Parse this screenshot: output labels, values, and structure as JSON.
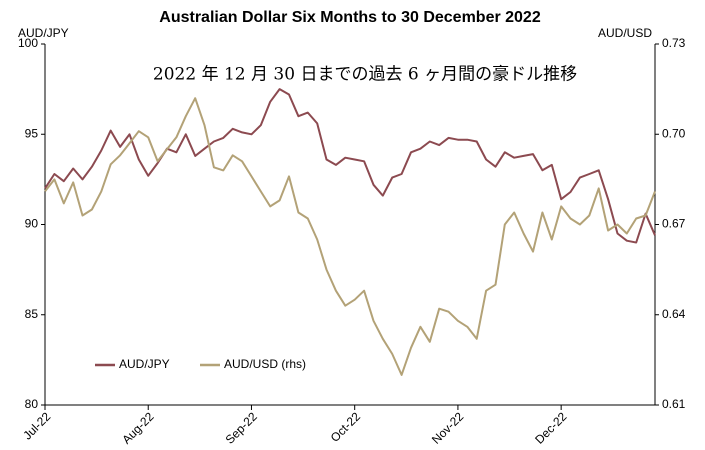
{
  "chart_data": {
    "type": "line",
    "title": "Australian Dollar Six Months to 30 December 2022",
    "subtitle": "2022 年 12 月 30 日までの過去 6 ヶ月間の豪ドル推移",
    "ylabel": "AUD/JPY",
    "y2label": "AUD/USD",
    "categories": [
      "Jul-22",
      null,
      null,
      null,
      null,
      null,
      null,
      null,
      null,
      null,
      null,
      "Aug-22",
      null,
      null,
      null,
      null,
      null,
      null,
      null,
      null,
      null,
      null,
      "Sep-22",
      null,
      null,
      null,
      null,
      null,
      null,
      null,
      null,
      null,
      null,
      "Oct-22",
      null,
      null,
      null,
      null,
      null,
      null,
      null,
      null,
      null,
      null,
      "Nov-22",
      null,
      null,
      null,
      null,
      null,
      null,
      null,
      null,
      null,
      null,
      "Dec-22",
      null,
      null,
      null,
      null,
      null,
      null,
      null,
      null,
      null,
      null
    ],
    "series": [
      {
        "name": "AUD/JPY",
        "color": "#8c4a50",
        "values": [
          92.0,
          92.8,
          92.4,
          93.1,
          92.5,
          93.2,
          94.1,
          95.2,
          94.3,
          95.0,
          93.6,
          92.7,
          93.4,
          94.2,
          94.0,
          95.0,
          93.8,
          94.2,
          94.6,
          94.8,
          95.3,
          95.1,
          95.0,
          95.5,
          96.8,
          97.5,
          97.2,
          96.0,
          96.2,
          95.6,
          93.6,
          93.3,
          93.7,
          93.6,
          93.5,
          92.2,
          91.6,
          92.6,
          92.8,
          94.0,
          94.2,
          94.6,
          94.4,
          94.8,
          94.7,
          94.7,
          94.6,
          93.6,
          93.2,
          94.0,
          93.7,
          93.8,
          93.9,
          93.0,
          93.3,
          91.4,
          91.8,
          92.6,
          92.8,
          93.0,
          91.4,
          89.5,
          89.1,
          89.0,
          90.6,
          89.4
        ]
      },
      {
        "name": "AUD/USD (rhs)",
        "color": "#b3a277",
        "axis": "y2",
        "values": [
          0.681,
          0.685,
          0.677,
          0.684,
          0.673,
          0.675,
          0.681,
          0.69,
          0.693,
          0.697,
          0.701,
          0.699,
          0.691,
          0.695,
          0.699,
          0.706,
          0.712,
          0.703,
          0.689,
          0.688,
          0.693,
          0.691,
          0.686,
          0.681,
          0.676,
          0.678,
          0.686,
          0.674,
          0.672,
          0.665,
          0.655,
          0.648,
          0.643,
          0.645,
          0.648,
          0.638,
          0.632,
          0.627,
          0.62,
          0.629,
          0.636,
          0.631,
          0.642,
          0.641,
          0.638,
          0.636,
          0.632,
          0.648,
          0.65,
          0.67,
          0.674,
          0.667,
          0.661,
          0.674,
          0.665,
          0.676,
          0.672,
          0.67,
          0.673,
          0.682,
          0.668,
          0.67,
          0.667,
          0.672,
          0.673,
          0.681
        ]
      }
    ],
    "ylim": [
      80,
      100
    ],
    "yticks": [
      80,
      85,
      90,
      95,
      100
    ],
    "y2lim": [
      0.61,
      0.73
    ],
    "y2ticks": [
      0.61,
      0.64,
      0.67,
      {
        "value": 0.7,
        "label": "0.70"
      },
      0.73
    ],
    "grid": false,
    "legend": "lower left"
  }
}
